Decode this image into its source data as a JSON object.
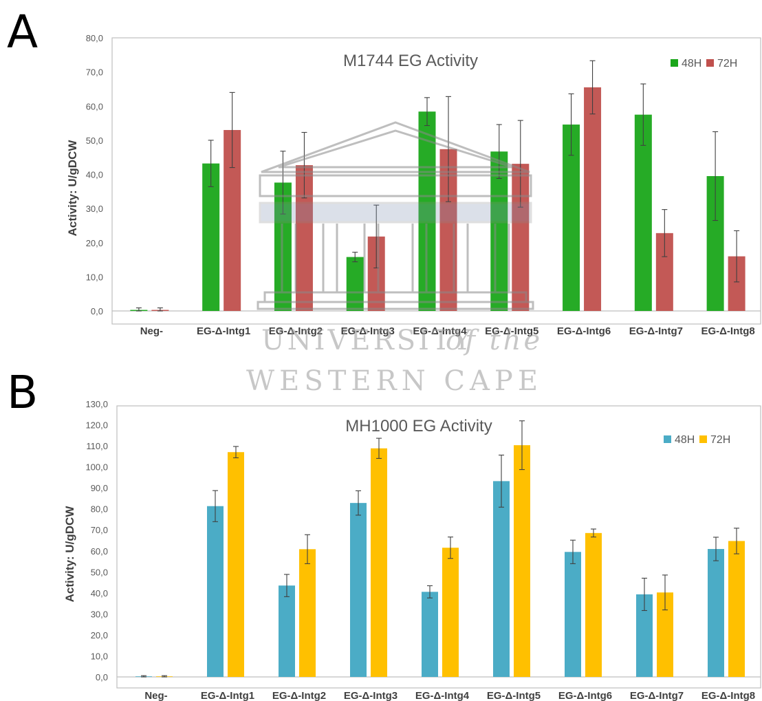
{
  "panel_labels": [
    "A",
    "B"
  ],
  "watermark": {
    "line1": "UNIVERSITY",
    "line1b": "of the",
    "line2": "WESTERN CAPE"
  },
  "chart_data": [
    {
      "type": "bar",
      "title": "M1744 EG Activity",
      "ylabel": "Activity: U/gDCW",
      "xlabel": "",
      "ylim": [
        0,
        80
      ],
      "yticks": [
        "0,0",
        "10,0",
        "20,0",
        "30,0",
        "40,0",
        "50,0",
        "60,0",
        "70,0",
        "80,0"
      ],
      "grid": false,
      "legend_position": "top-right",
      "categories": [
        "Neg-",
        "EG-Δ-Intg1",
        "EG-Δ-Intg2",
        "EG-Δ-Intg3",
        "EG-Δ-Intg4",
        "EG-Δ-Intg5",
        "EG-Δ-Intg6",
        "EG-Δ-Intg7",
        "EG-Δ-Intg8"
      ],
      "series": [
        {
          "name": "48H",
          "color": "#1aa61a",
          "values": [
            0.3,
            43.2,
            37.6,
            15.8,
            58.4,
            46.7,
            54.6,
            57.5,
            39.5
          ],
          "errors": [
            0.6,
            6.8,
            9.2,
            1.4,
            4.1,
            7.9,
            9.0,
            9.0,
            13.0
          ]
        },
        {
          "name": "72H",
          "color": "#c0504d",
          "values": [
            0.3,
            53.0,
            42.7,
            21.8,
            47.4,
            43.1,
            65.5,
            22.8,
            16.0
          ],
          "errors": [
            0.6,
            11.0,
            9.6,
            9.2,
            15.4,
            12.7,
            7.8,
            6.9,
            7.5
          ]
        }
      ]
    },
    {
      "type": "bar",
      "title": "MH1000 EG Activity",
      "ylabel": "Activity: U/gDCW",
      "xlabel": "",
      "ylim": [
        0,
        130
      ],
      "yticks": [
        "0,0",
        "10,0",
        "20,0",
        "30,0",
        "40,0",
        "50,0",
        "60,0",
        "70,0",
        "80,0",
        "90,0",
        "100,0",
        "110,0",
        "120,0",
        "130,0"
      ],
      "grid": false,
      "legend_position": "top-right",
      "categories": [
        "Neg-",
        "EG-Δ-Intg1",
        "EG-Δ-Intg2",
        "EG-Δ-Intg3",
        "EG-Δ-Intg4",
        "EG-Δ-Intg5",
        "EG-Δ-Intg6",
        "EG-Δ-Intg7",
        "EG-Δ-Intg8"
      ],
      "series": [
        {
          "name": "48H",
          "color": "#4bacc6",
          "values": [
            0,
            81.3,
            43.5,
            82.8,
            40.5,
            93.2,
            59.5,
            39.3,
            60.9
          ],
          "errors": [
            0.6,
            7.4,
            5.3,
            5.8,
            2.9,
            12.4,
            5.6,
            7.7,
            5.6
          ]
        },
        {
          "name": "72H",
          "color": "#ffc000",
          "values": [
            0,
            107.0,
            60.8,
            108.8,
            61.5,
            110.3,
            68.5,
            40.2,
            64.7
          ],
          "errors": [
            0.6,
            2.7,
            6.9,
            4.8,
            5.1,
            11.6,
            1.9,
            8.3,
            6.1
          ]
        }
      ]
    }
  ]
}
